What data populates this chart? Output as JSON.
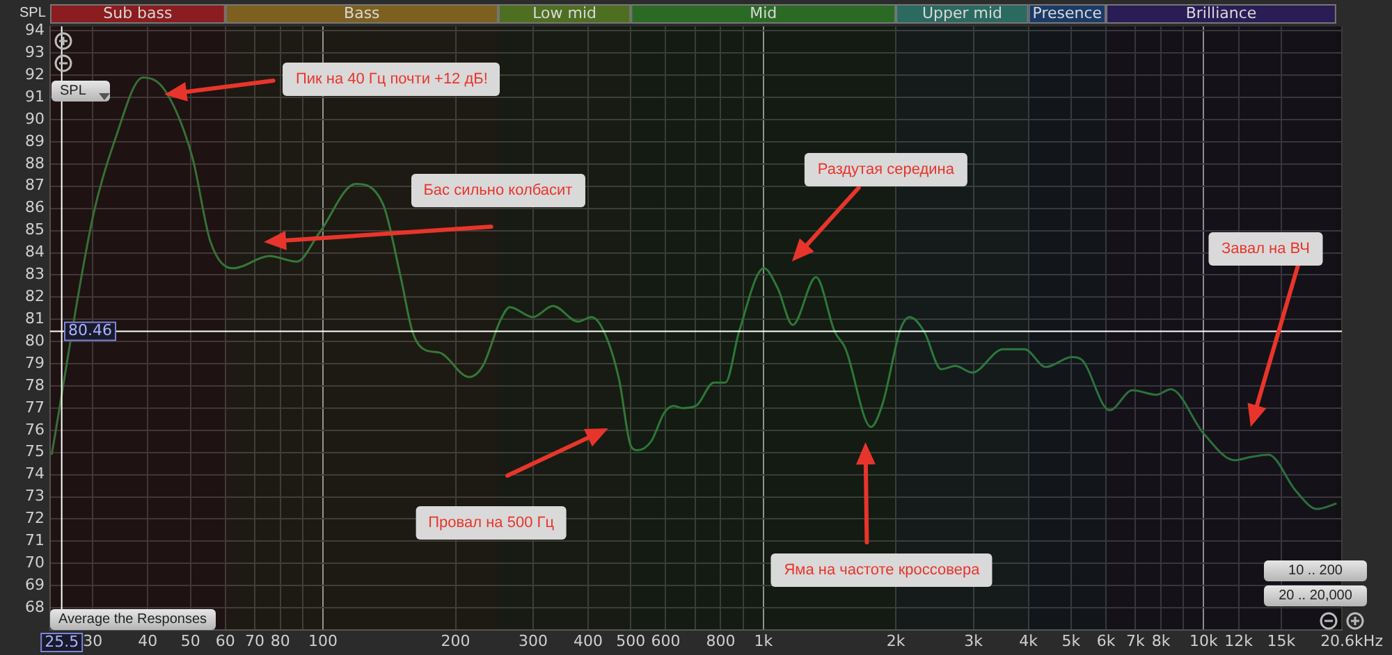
{
  "chart_data": {
    "type": "line",
    "ylabel": "SPL",
    "log": "x",
    "grid": true,
    "legend": false,
    "marker": "none",
    "line_style": "solid",
    "xlim": [
      24,
      20600
    ],
    "ylim": [
      67,
      94.2
    ],
    "xticks": [
      30,
      40,
      50,
      60,
      70,
      80,
      {
        "value": 90,
        "label": null
      },
      100,
      200,
      300,
      400,
      500,
      600,
      {
        "value": 700,
        "label": null
      },
      800,
      {
        "value": 900,
        "label": null
      },
      {
        "value": 1000,
        "label": "1k"
      },
      {
        "value": 2000,
        "label": "2k"
      },
      {
        "value": 3000,
        "label": "3k"
      },
      {
        "value": 4000,
        "label": "4k"
      },
      {
        "value": 5000,
        "label": "5k"
      },
      {
        "value": 6000,
        "label": "6k"
      },
      {
        "value": 7000,
        "label": "7k"
      },
      {
        "value": 8000,
        "label": "8k"
      },
      {
        "value": 9000,
        "label": null
      },
      {
        "value": 10000,
        "label": "10k"
      },
      {
        "value": 12000,
        "label": "12k"
      },
      {
        "value": 15000,
        "label": "15k"
      },
      {
        "value": 20600,
        "label": "20.6k"
      }
    ],
    "xlabel": "Hz",
    "yticks": [
      68,
      69,
      70,
      71,
      72,
      73,
      74,
      75,
      76,
      77,
      78,
      79,
      80,
      81,
      82,
      83,
      84,
      85,
      86,
      87,
      88,
      89,
      90,
      91,
      92,
      93,
      94
    ],
    "series": [
      {
        "color": "#2e7a3a",
        "x": [
          24.2,
          30,
          33.7,
          39,
          43.8,
          50.5,
          55.5,
          62.5,
          75.6,
          87.2,
          98.1,
          118.6,
          136.8,
          150.3,
          159.6,
          171.4,
          184,
          214.6,
          230.6,
          253.4,
          265.6,
          299.4,
          332.9,
          379.3,
          407.5,
          437.9,
          470.7,
          500,
          518,
          556,
          596,
          626,
          656,
          703,
          772,
          820,
          881,
          1003,
          1078,
          1166,
          1317,
          1452,
          1535,
          1756,
          1866,
          2048,
          2151,
          2318,
          2535,
          2731,
          2980,
          3500,
          3920,
          4380,
          5020,
          5270,
          6110,
          6890,
          7810,
          8420,
          10000,
          11750,
          12830,
          14030,
          16220,
          18080,
          20030
        ],
        "values": [
          74.9,
          85.6,
          89.1,
          91.9,
          91.3,
          88.3,
          84.5,
          83.3,
          83.85,
          83.6,
          84.9,
          87.1,
          86.2,
          82.85,
          80.45,
          79.6,
          79.5,
          78.4,
          78.9,
          81.0,
          81.55,
          81.1,
          81.6,
          80.9,
          81.1,
          80.3,
          78.25,
          75.3,
          75.1,
          75.5,
          76.8,
          77.1,
          77.0,
          77.1,
          78.15,
          78.15,
          80.45,
          83.3,
          82.4,
          80.75,
          82.9,
          80.45,
          79.7,
          76.15,
          77.2,
          80.55,
          81.1,
          80.45,
          78.75,
          78.9,
          78.6,
          79.65,
          79.65,
          78.85,
          79.3,
          79.2,
          76.9,
          77.8,
          77.6,
          77.85,
          75.85,
          74.65,
          74.8,
          74.9,
          73.25,
          72.45,
          72.7
        ]
      }
    ],
    "ref_lines": [
      {
        "axis": "x",
        "value": 25.5,
        "label": "25.5",
        "color": "#ffffff"
      },
      {
        "axis": "y",
        "value": 80.46,
        "label": "80.46",
        "color": "#ffffff"
      }
    ],
    "bands": [
      {
        "axis": "x",
        "from": 24,
        "to": 60,
        "label": "Sub bass",
        "color": "#8b1c1f"
      },
      {
        "axis": "x",
        "from": 60,
        "to": 250,
        "label": "Bass",
        "color": "#7d6020"
      },
      {
        "axis": "x",
        "from": 250,
        "to": 500,
        "label": "Low mid",
        "color": "#4e6e22"
      },
      {
        "axis": "x",
        "from": 500,
        "to": 2000,
        "label": "Mid",
        "color": "#2b6a25"
      },
      {
        "axis": "x",
        "from": 2000,
        "to": 4000,
        "label": "Upper mid",
        "color": "#2b6a60"
      },
      {
        "axis": "x",
        "from": 4000,
        "to": 6000,
        "label": "Presence",
        "color": "#1c3a68"
      },
      {
        "axis": "x",
        "from": 6000,
        "to": 20000,
        "label": "Brilliance",
        "color": "#2a1c55"
      }
    ],
    "annotations": [
      "Пик на 40 Гц почти +12 дБ!",
      "Бас сильно колбасит",
      "Раздутая середина",
      "Провал на 500 Гц",
      "Яма на частоте кроссовера",
      "Завал на ВЧ",
      "SPL",
      "Average the Responses",
      "10 .. 200",
      "20 .. 20,000"
    ]
  }
}
